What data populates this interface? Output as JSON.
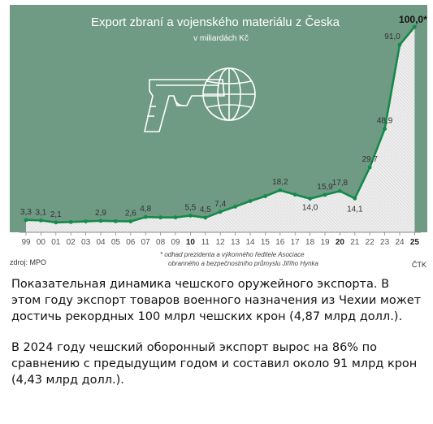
{
  "chart_data": {
    "type": "area",
    "title": "Export zbraní a vojenského materiálu z Česka",
    "subtitle": "v miliardách Kč",
    "categories": [
      "99",
      "00",
      "01",
      "02",
      "03",
      "04",
      "05",
      "06",
      "07",
      "08",
      "09",
      "10",
      "11",
      "12",
      "13",
      "14",
      "15",
      "16",
      "17",
      "18",
      "19",
      "20",
      "21",
      "22",
      "23",
      "24",
      "25"
    ],
    "bold_ticks": [
      "10",
      "20",
      "25"
    ],
    "values": [
      3.3,
      3.1,
      2.1,
      2.3,
      2.6,
      2.9,
      2.7,
      2.6,
      4.8,
      4.6,
      4.6,
      5.5,
      4.5,
      7.4,
      10.0,
      12.8,
      15.2,
      18.2,
      16.0,
      14.0,
      15.9,
      17.8,
      14.1,
      29.7,
      48.9,
      91.0,
      100.0
    ],
    "data_labels": [
      {
        "index": 0,
        "text": "3,3"
      },
      {
        "index": 1,
        "text": "3,1"
      },
      {
        "index": 2,
        "text": "2,1"
      },
      {
        "index": 5,
        "text": "2,9"
      },
      {
        "index": 7,
        "text": "2,6"
      },
      {
        "index": 8,
        "text": "4,8"
      },
      {
        "index": 11,
        "text": "5,5"
      },
      {
        "index": 12,
        "text": "4,5"
      },
      {
        "index": 13,
        "text": "7,4"
      },
      {
        "index": 17,
        "text": "18,2"
      },
      {
        "index": 19,
        "text": "14,0"
      },
      {
        "index": 20,
        "text": "15,9"
      },
      {
        "index": 21,
        "text": "17,8"
      },
      {
        "index": 22,
        "text": "14,1"
      },
      {
        "index": 23,
        "text": "29,7"
      },
      {
        "index": 24,
        "text": "48,9"
      },
      {
        "index": 25,
        "text": "91,0"
      },
      {
        "index": 26,
        "text": "100,0*"
      }
    ],
    "ylim": [
      0,
      100
    ],
    "grid": false,
    "note": "* odhad prezidenta a výkonného ředitele Asociace obranného a bezpečnostního průmyslu Jiřího Hynka",
    "source": "zdroj: MPO",
    "agency": "ČTK",
    "colors": {
      "background": "#6f9a83",
      "line": "#138a4a",
      "marker": "#138a4a",
      "fill": "#e6e9e6"
    },
    "illustration": [
      "pistol-icon",
      "globe-icon"
    ]
  },
  "caption": {
    "paragraph1": "Показательная динамика чешского оружейного экспорта. В этом году экспорт товаров военного назначения из Чехии может достичь рекордных 100 млрл чешских крон (4,87 млрд долл.).",
    "paragraph2": "В 2024 году чешский оборонный экспорт вырос на 86% по сравнению с предыдущим годом и составил около 91 млрд крон (4,43 млрд долл.)."
  }
}
